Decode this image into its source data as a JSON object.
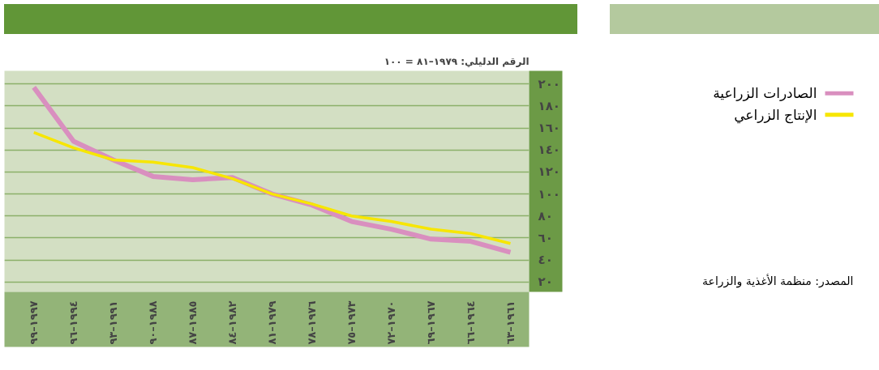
{
  "chart_data": {
    "type": "line",
    "subtitle": "الرقم الدليلي: ١٩٧٩–٨١ = ١٠٠",
    "categories": [
      "١٩٩٧–٩٩",
      "١٩٩٤–٩٦",
      "١٩٩١–٩٣",
      "١٩٨٨–٩٠",
      "١٩٨٥–٨٧",
      "١٩٨٢–٨٤",
      "١٩٧٩–٨١",
      "١٩٧٦–٧٨",
      "١٩٧٣–٧٥",
      "١٩٧٠–٧٢",
      "١٩٦٧–٦٩",
      "١٩٦٤–٦٦",
      "١٩٦١–٦٣"
    ],
    "series": [
      {
        "name": "الصادرات الزراعية",
        "color": "#d98fbf",
        "values": [
          197,
          148,
          131,
          116,
          113,
          115,
          100,
          90,
          75,
          68,
          59,
          57,
          47
        ]
      },
      {
        "name": "الإنتاج الزراعي",
        "color": "#f7e600",
        "values": [
          156,
          142,
          131,
          129,
          124,
          114,
          100,
          91,
          80,
          75,
          68,
          64,
          55
        ]
      }
    ],
    "ylim": [
      11,
      212
    ],
    "yticks": [
      {
        "value": 20,
        "label": "٢٠"
      },
      {
        "value": 40,
        "label": "٤٠"
      },
      {
        "value": 60,
        "label": "٦٠"
      },
      {
        "value": 80,
        "label": "٨٠"
      },
      {
        "value": 100,
        "label": "١٠٠"
      },
      {
        "value": 120,
        "label": "١٢٠"
      },
      {
        "value": 140,
        "label": "١٤٠"
      },
      {
        "value": 160,
        "label": "١٦٠"
      },
      {
        "value": 180,
        "label": "١٨٠"
      },
      {
        "value": 200,
        "label": "٢٠٠"
      }
    ],
    "grid": "y",
    "legend": "right",
    "line_style": "solid",
    "marker": "none",
    "annotations": [
      "المصدر: منظمة الأغذية والزراعة"
    ]
  }
}
